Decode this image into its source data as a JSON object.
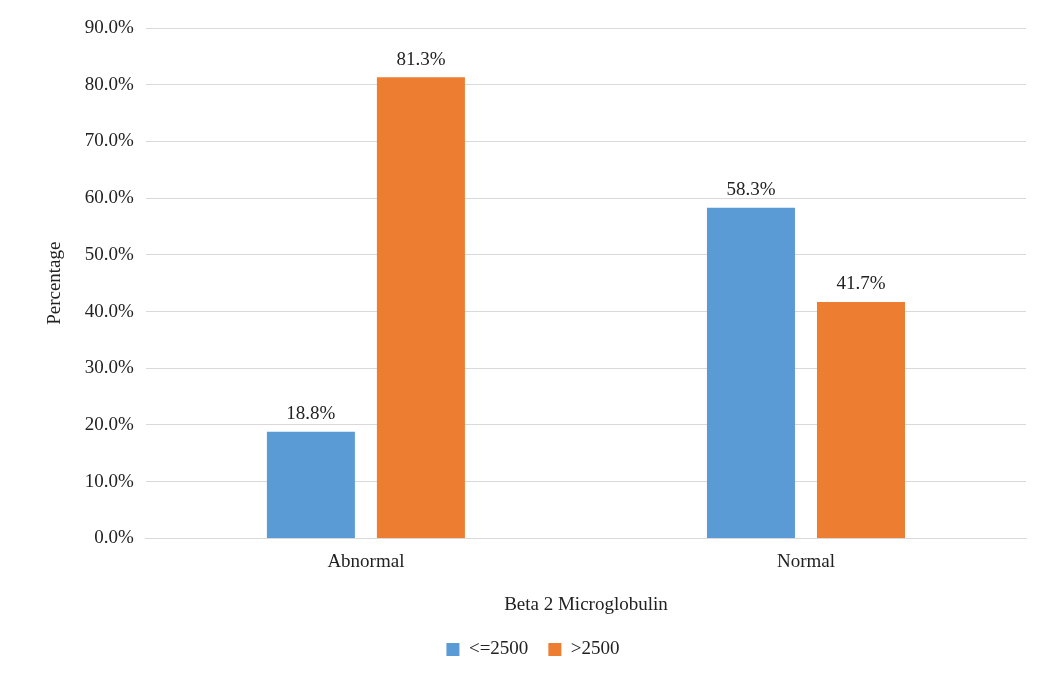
{
  "chart_data": {
    "type": "bar",
    "xlabel": "Beta 2 Microglobulin",
    "ylabel": "Percentage",
    "categories": [
      "Abnormal",
      "Normal"
    ],
    "series": [
      {
        "name": "<=2500",
        "color": "#5b9bd5",
        "values": [
          18.8,
          58.3
        ],
        "value_labels": [
          "18.8%",
          "58.3%"
        ]
      },
      {
        "name": ">2500",
        "color": "#ed7d31",
        "values": [
          81.3,
          41.7
        ],
        "value_labels": [
          "81.3%",
          "41.7%"
        ]
      }
    ],
    "ylim": [
      0,
      90
    ],
    "yticks": [
      {
        "value": 0,
        "label": "0.0%"
      },
      {
        "value": 10,
        "label": "10.0%"
      },
      {
        "value": 20,
        "label": "20.0%"
      },
      {
        "value": 30,
        "label": "30.0%"
      },
      {
        "value": 40,
        "label": "40.0%"
      },
      {
        "value": 50,
        "label": "50.0%"
      },
      {
        "value": 60,
        "label": "60.0%"
      },
      {
        "value": 70,
        "label": "70.0%"
      },
      {
        "value": 80,
        "label": "80.0%"
      },
      {
        "value": 90,
        "label": "90.0%"
      }
    ],
    "grid": "y",
    "legend": "bottom"
  }
}
